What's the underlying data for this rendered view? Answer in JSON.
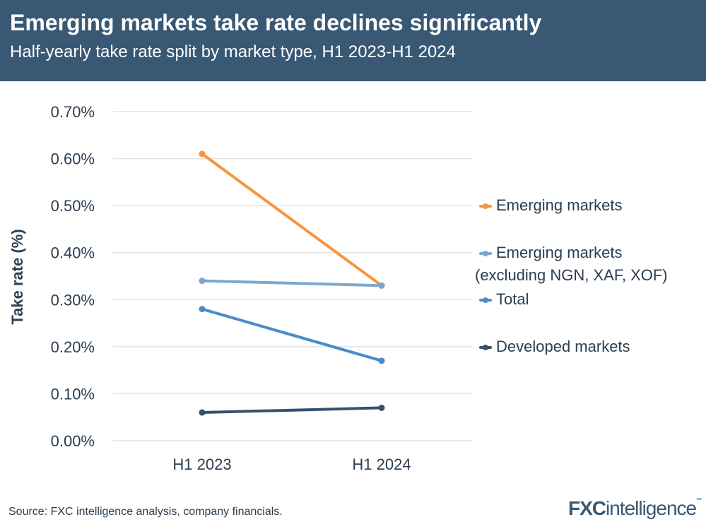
{
  "header": {
    "title": "Emerging markets take rate declines significantly",
    "subtitle": "Half-yearly take rate split by market type, H1 2023-H1 2024"
  },
  "chart_data": {
    "type": "line",
    "title": "Emerging markets take rate declines significantly",
    "subtitle": "Half-yearly take rate split by market type, H1 2023-H1 2024",
    "xlabel": "",
    "ylabel": "Take rate (%)",
    "categories": [
      "H1 2023",
      "H1 2024"
    ],
    "ylim": [
      0,
      0.7
    ],
    "yticks": [
      "0.00%",
      "0.10%",
      "0.20%",
      "0.30%",
      "0.40%",
      "0.50%",
      "0.60%",
      "0.70%"
    ],
    "grid": true,
    "legend_position": "right",
    "series": [
      {
        "name": "Emerging markets",
        "values": [
          0.61,
          0.33
        ],
        "color": "#f7943c"
      },
      {
        "name": "Emerging markets (excluding NGN, XAF, XOF)",
        "name_lines": [
          "Emerging markets",
          "(excluding NGN, XAF, XOF)"
        ],
        "values": [
          0.34,
          0.33
        ],
        "color": "#7ba7cf"
      },
      {
        "name": "Total",
        "values": [
          0.28,
          0.17
        ],
        "color": "#4a8cc7"
      },
      {
        "name": "Developed markets",
        "values": [
          0.06,
          0.07
        ],
        "color": "#34516e"
      }
    ]
  },
  "footer": {
    "source": "Source: FXC intelligence analysis, company financials.",
    "logo": "FXCintelligence"
  }
}
